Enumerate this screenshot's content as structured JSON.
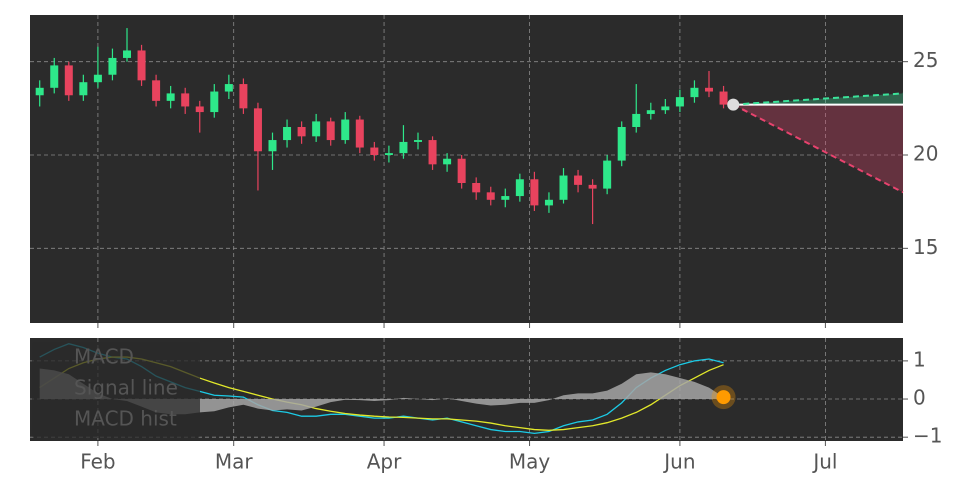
{
  "chart_data": [
    {
      "type": "candlestick",
      "x": [
        20,
        23,
        26,
        29,
        32,
        35,
        38,
        41,
        44,
        47,
        50,
        53,
        56,
        59,
        62,
        65,
        68,
        71,
        74,
        77,
        80,
        83,
        86,
        89,
        92,
        95,
        98,
        101,
        104,
        107,
        110,
        113,
        116,
        119,
        122,
        125,
        128,
        131,
        134,
        137,
        140,
        143,
        146,
        149,
        152,
        155,
        158,
        161
      ],
      "open": [
        23.2,
        23.6,
        24.8,
        23.2,
        23.9,
        24.3,
        25.2,
        25.6,
        24.0,
        22.9,
        23.3,
        22.6,
        22.3,
        23.4,
        23.8,
        22.5,
        20.2,
        20.8,
        21.5,
        21.0,
        21.8,
        20.8,
        21.9,
        20.4,
        20.0,
        20.1,
        20.7,
        20.8,
        19.5,
        19.8,
        18.5,
        18.0,
        17.6,
        17.8,
        18.7,
        17.3,
        17.6,
        18.9,
        18.4,
        18.2,
        19.7,
        21.5,
        22.2,
        22.4,
        22.6,
        23.1,
        23.6,
        23.4
      ],
      "high": [
        24.0,
        25.2,
        25.0,
        24.3,
        25.8,
        25.7,
        26.8,
        25.9,
        24.3,
        23.7,
        23.6,
        22.9,
        23.8,
        24.3,
        24.1,
        22.8,
        21.2,
        21.9,
        21.8,
        22.2,
        22.0,
        22.3,
        22.1,
        20.7,
        20.5,
        21.6,
        21.2,
        21.0,
        20.1,
        20.0,
        18.8,
        18.3,
        18.2,
        19.0,
        19.1,
        18.0,
        19.3,
        19.2,
        18.7,
        20.0,
        21.8,
        23.8,
        22.8,
        23.0,
        23.5,
        24.0,
        24.5,
        23.7
      ],
      "low": [
        22.6,
        23.3,
        22.9,
        22.9,
        23.6,
        24.0,
        25.0,
        23.7,
        22.6,
        22.5,
        22.2,
        21.2,
        22.0,
        23.0,
        22.2,
        18.1,
        19.2,
        20.4,
        20.6,
        20.7,
        20.5,
        20.6,
        20.1,
        19.7,
        19.6,
        19.8,
        20.3,
        19.2,
        19.1,
        18.2,
        17.6,
        17.3,
        17.2,
        17.5,
        17.0,
        16.9,
        17.4,
        18.0,
        16.3,
        17.9,
        19.4,
        21.2,
        21.9,
        22.2,
        22.3,
        22.8,
        23.1,
        22.5
      ],
      "close": [
        23.6,
        24.8,
        23.2,
        23.9,
        24.3,
        25.2,
        25.6,
        24.0,
        22.9,
        23.3,
        22.6,
        22.3,
        23.4,
        23.8,
        22.5,
        20.2,
        20.8,
        21.5,
        21.0,
        21.8,
        20.8,
        21.9,
        20.4,
        20.0,
        20.1,
        20.7,
        20.8,
        19.5,
        19.8,
        18.5,
        18.0,
        17.6,
        17.8,
        18.7,
        17.3,
        17.6,
        18.9,
        18.4,
        18.2,
        19.7,
        21.5,
        22.2,
        22.4,
        22.6,
        23.1,
        23.6,
        23.4,
        22.7
      ],
      "up_color": "#2ee88a",
      "down_color": "#e8435e",
      "forecast": {
        "x": [
          163,
          198
        ],
        "upper": [
          22.7,
          23.3
        ],
        "lower": [
          22.7,
          18.0
        ],
        "last": [
          22.7,
          22.7
        ],
        "upper_color": "#3be39a",
        "lower_color": "#e8436e",
        "last_color": "#ffffff"
      },
      "ylim": [
        11,
        27.5
      ],
      "yticks": [
        15,
        20,
        25
      ],
      "grid": true
    },
    {
      "type": "line",
      "x": [
        20,
        23,
        26,
        29,
        32,
        35,
        38,
        41,
        44,
        47,
        50,
        53,
        56,
        59,
        62,
        65,
        68,
        71,
        74,
        77,
        80,
        83,
        86,
        89,
        92,
        95,
        98,
        101,
        104,
        107,
        110,
        113,
        116,
        119,
        122,
        125,
        128,
        131,
        134,
        137,
        140,
        143,
        146,
        149,
        152,
        155,
        158,
        161
      ],
      "series": [
        {
          "name": "MACD",
          "color": "#1ccbe6",
          "values": [
            1.1,
            1.3,
            1.45,
            1.35,
            1.2,
            1.1,
            1.05,
            0.85,
            0.6,
            0.45,
            0.3,
            0.2,
            0.1,
            0.08,
            0.05,
            -0.15,
            -0.3,
            -0.35,
            -0.45,
            -0.45,
            -0.4,
            -0.4,
            -0.45,
            -0.5,
            -0.5,
            -0.45,
            -0.5,
            -0.55,
            -0.5,
            -0.6,
            -0.7,
            -0.8,
            -0.85,
            -0.85,
            -0.9,
            -0.85,
            -0.7,
            -0.6,
            -0.55,
            -0.4,
            -0.1,
            0.3,
            0.55,
            0.75,
            0.9,
            1.0,
            1.05,
            0.95
          ]
        },
        {
          "name": "Signal line",
          "color": "#e2e82a",
          "values": [
            0.3,
            0.55,
            0.8,
            0.95,
            1.05,
            1.1,
            1.1,
            1.05,
            0.95,
            0.85,
            0.7,
            0.55,
            0.42,
            0.3,
            0.2,
            0.1,
            0.0,
            -0.08,
            -0.15,
            -0.25,
            -0.32,
            -0.38,
            -0.42,
            -0.45,
            -0.47,
            -0.48,
            -0.5,
            -0.52,
            -0.52,
            -0.55,
            -0.58,
            -0.63,
            -0.7,
            -0.75,
            -0.8,
            -0.82,
            -0.8,
            -0.75,
            -0.7,
            -0.62,
            -0.5,
            -0.35,
            -0.15,
            0.1,
            0.35,
            0.55,
            0.75,
            0.9
          ]
        },
        {
          "name": "MACD hist",
          "color": "#a6a6a6",
          "kind": "area",
          "values": [
            0.8,
            0.75,
            0.65,
            0.4,
            0.15,
            0.0,
            -0.05,
            -0.2,
            -0.35,
            -0.4,
            -0.4,
            -0.35,
            -0.32,
            -0.22,
            -0.15,
            -0.25,
            -0.3,
            -0.27,
            -0.3,
            -0.2,
            -0.08,
            -0.02,
            -0.03,
            -0.05,
            -0.03,
            0.03,
            0.0,
            -0.03,
            0.02,
            -0.05,
            -0.12,
            -0.17,
            -0.15,
            -0.1,
            -0.1,
            -0.03,
            0.1,
            0.15,
            0.15,
            0.22,
            0.4,
            0.65,
            0.7,
            0.65,
            0.55,
            0.45,
            0.3,
            0.05
          ]
        }
      ],
      "marker_color": "#ff9a00",
      "xlim": [
        18,
        198
      ],
      "xticks": [
        {
          "value": 32,
          "label": "Feb"
        },
        {
          "value": 60,
          "label": "Mar"
        },
        {
          "value": 91,
          "label": "Apr"
        },
        {
          "value": 121,
          "label": "May"
        },
        {
          "value": 152,
          "label": "Jun"
        },
        {
          "value": 182,
          "label": "Jul"
        }
      ],
      "ylim": [
        -1.1,
        1.6
      ],
      "yticks": [
        1,
        0,
        {
          "value": -1,
          "label": "−1"
        }
      ],
      "grid": true,
      "legend": "upper left"
    }
  ]
}
